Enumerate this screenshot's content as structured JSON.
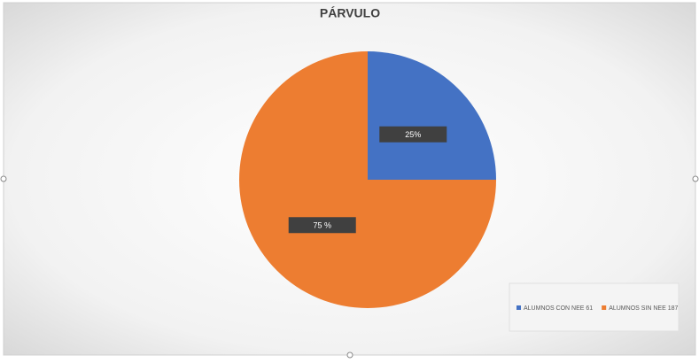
{
  "chart_data": {
    "type": "pie",
    "title": "PÁRVULO",
    "labels": [
      "ALUMNOS CON NEE 61",
      "ALUMNOS SIN NEE 187"
    ],
    "values": [
      25,
      75
    ],
    "value_labels": [
      "25%",
      "75 %"
    ],
    "colors": [
      "#4472c4",
      "#ed7d31"
    ],
    "legend": "lower right"
  }
}
